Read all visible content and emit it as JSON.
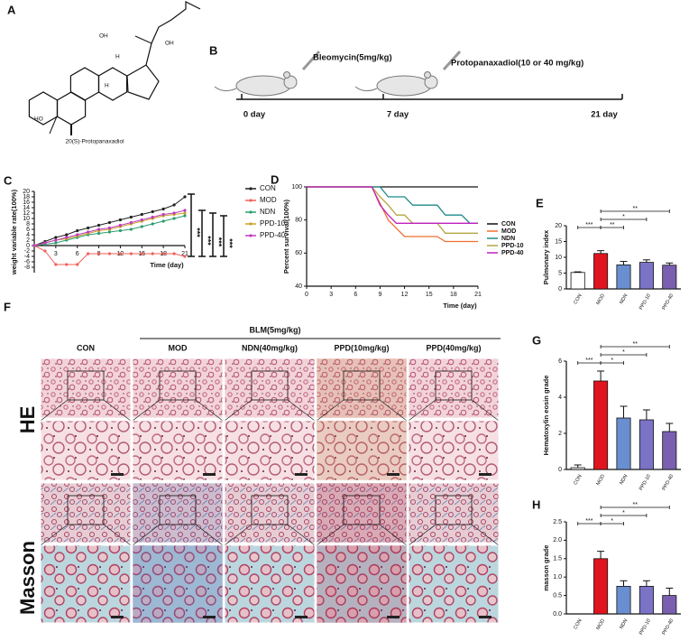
{
  "panels": {
    "A": {
      "label": "A",
      "caption": "20(S)-Protopanaxadiol",
      "atoms": [
        "OH",
        "OH",
        "H",
        "HO",
        "H"
      ]
    },
    "B": {
      "label": "B",
      "drug1": "Bleomycin(5mg/kg)",
      "drug2": "Protopanaxadiol(10 or 40 mg/kg)",
      "days": [
        "0 day",
        "7 day",
        "21 day"
      ]
    },
    "F": {
      "label": "F",
      "group": "BLM(5mg/kg)",
      "columns": [
        "CON",
        "MOD",
        "NDN(40mg/kg)",
        "PPD(10mg/kg)",
        "PPD(40mg/kg)"
      ],
      "rows": [
        "HE",
        "Masson"
      ]
    }
  },
  "chart_data": [
    {
      "label": "C",
      "type": "line",
      "y_label": "weight variable rate(100%)",
      "x_label": "Time (day)",
      "x": [
        0,
        1.5,
        3,
        4.5,
        6,
        7.5,
        9,
        10.5,
        12,
        13.5,
        15,
        16.5,
        18,
        19.5,
        21
      ],
      "xlim": [
        0,
        21
      ],
      "xticks": [
        3,
        6,
        9,
        12,
        15,
        18,
        21
      ],
      "ylim": [
        -10,
        20
      ],
      "yticks": [
        -8,
        -6,
        -4,
        -2,
        0,
        2,
        4,
        6,
        8,
        10,
        12,
        14,
        16,
        18,
        20
      ],
      "series": [
        {
          "name": "CON",
          "color": "#222222",
          "values": [
            0,
            1.5,
            3,
            4,
            5.5,
            6.5,
            7.5,
            8.5,
            9.5,
            10.5,
            11.5,
            12.5,
            13.5,
            15,
            18
          ]
        },
        {
          "name": "MOD",
          "color": "#f0605a",
          "values": [
            0,
            -2,
            -7,
            -7,
            -7,
            -3,
            -3,
            -3,
            -3,
            -3,
            -3,
            -3,
            -3,
            -3,
            -4
          ]
        },
        {
          "name": "NDN",
          "color": "#2a9d6f",
          "values": [
            0,
            0.5,
            1,
            2,
            3,
            4,
            4.5,
            5,
            5.5,
            6,
            7,
            8,
            9,
            10,
            11
          ]
        },
        {
          "name": "PPD-10",
          "color": "#c9a227",
          "values": [
            0,
            1,
            2,
            2.5,
            3.5,
            4.5,
            5.5,
            6,
            7,
            8,
            9,
            10,
            11,
            11.5,
            12
          ]
        },
        {
          "name": "PPD-40",
          "color": "#c03cc0",
          "values": [
            0,
            1,
            2,
            3,
            4,
            5,
            6,
            6.5,
            7.5,
            8.5,
            9.5,
            10.5,
            11.5,
            12,
            13
          ]
        }
      ],
      "significance": [
        {
          "label": "***",
          "color": "#222222"
        },
        {
          "label": "***",
          "color": "#9b59b6"
        },
        {
          "label": "***",
          "color": "#c8b400"
        },
        {
          "label": "***",
          "color": "#2e8b57"
        }
      ]
    },
    {
      "label": "D",
      "type": "survival",
      "y_label": "Percent survival(100%)",
      "x_label": "Time (day)",
      "x": [
        0,
        1,
        2,
        3,
        4,
        5,
        6,
        7,
        8,
        9,
        10,
        11,
        12,
        13,
        14,
        15,
        16,
        17,
        18,
        19,
        20,
        21
      ],
      "xlim": [
        0,
        21
      ],
      "xticks": [
        0,
        3,
        6,
        9,
        12,
        15,
        18,
        21
      ],
      "ylim": [
        40,
        100
      ],
      "yticks": [
        40,
        60,
        80,
        100
      ],
      "series": [
        {
          "name": "CON",
          "color": "#111111",
          "values": [
            100,
            100,
            100,
            100,
            100,
            100,
            100,
            100,
            100,
            100,
            100,
            100,
            100,
            100,
            100,
            100,
            100,
            100,
            100,
            100,
            100,
            100
          ]
        },
        {
          "name": "MOD",
          "color": "#f07030",
          "values": [
            100,
            100,
            100,
            100,
            100,
            100,
            100,
            100,
            100,
            90,
            80,
            75,
            70,
            70,
            70,
            70,
            70,
            67,
            67,
            67,
            67,
            67
          ]
        },
        {
          "name": "NDN",
          "color": "#1f8a8a",
          "values": [
            100,
            100,
            100,
            100,
            100,
            100,
            100,
            100,
            100,
            100,
            94,
            94,
            94,
            89,
            89,
            89,
            89,
            83,
            83,
            83,
            78,
            78
          ]
        },
        {
          "name": "PPD-10",
          "color": "#b5a642",
          "values": [
            100,
            100,
            100,
            100,
            100,
            100,
            100,
            100,
            100,
            94,
            89,
            83,
            83,
            78,
            78,
            78,
            78,
            72,
            72,
            72,
            72,
            72
          ]
        },
        {
          "name": "PPD-40",
          "color": "#c020c0",
          "values": [
            100,
            100,
            100,
            100,
            100,
            100,
            100,
            100,
            100,
            89,
            83,
            78,
            78,
            78,
            78,
            78,
            78,
            78,
            78,
            78,
            78,
            78
          ]
        }
      ]
    },
    {
      "label": "E",
      "type": "bar",
      "y_label": "Pulmonary index",
      "categories": [
        "CON",
        "MOD",
        "NDN",
        "PPD-10",
        "PPD-40"
      ],
      "values": [
        5.2,
        11.2,
        7.6,
        8.4,
        7.5
      ],
      "errors": [
        0.2,
        0.9,
        1.1,
        0.8,
        0.7
      ],
      "colors": [
        "#ffffff",
        "#e0141e",
        "#6a8fd0",
        "#7b73c6",
        "#7a5fb0"
      ],
      "ylim": [
        0,
        20
      ],
      "yticks": [
        0,
        5,
        10,
        15,
        20
      ],
      "significance": [
        {
          "pair": [
            "CON",
            "MOD"
          ],
          "label": "***"
        },
        {
          "pair": [
            "MOD",
            "NDN"
          ],
          "label": "**"
        },
        {
          "pair": [
            "MOD",
            "PPD-10"
          ],
          "label": "*"
        },
        {
          "pair": [
            "MOD",
            "PPD-40"
          ],
          "label": "**"
        }
      ]
    },
    {
      "label": "G",
      "type": "bar",
      "y_label": "Hematoxylin eosin grade",
      "categories": [
        "CON",
        "MOD",
        "NDN",
        "PPD-10",
        "PPD-40"
      ],
      "values": [
        0.1,
        4.9,
        2.85,
        2.75,
        2.1
      ],
      "errors": [
        0.15,
        0.55,
        0.65,
        0.55,
        0.45
      ],
      "colors": [
        "#ffffff",
        "#e0141e",
        "#6a8fd0",
        "#7b73c6",
        "#7a5fb0"
      ],
      "ylim": [
        0,
        6
      ],
      "yticks": [
        0,
        2,
        4,
        6
      ],
      "significance": [
        {
          "pair": [
            "CON",
            "MOD"
          ],
          "label": "***"
        },
        {
          "pair": [
            "MOD",
            "NDN"
          ],
          "label": "*"
        },
        {
          "pair": [
            "MOD",
            "PPD-10"
          ],
          "label": "*"
        },
        {
          "pair": [
            "MOD",
            "PPD-40"
          ],
          "label": "**"
        }
      ]
    },
    {
      "label": "H",
      "type": "bar",
      "y_label": "masson grade",
      "categories": [
        "CON",
        "MOD",
        "NDN",
        "PPD-10",
        "PPD-40"
      ],
      "values": [
        0,
        1.5,
        0.75,
        0.75,
        0.5
      ],
      "errors": [
        0,
        0.2,
        0.15,
        0.15,
        0.2
      ],
      "colors": [
        "#ffffff",
        "#e0141e",
        "#6a8fd0",
        "#7b73c6",
        "#7a5fb0"
      ],
      "ylim": [
        0,
        2.5
      ],
      "yticks": [
        {
          "value": 0,
          "label": "0.0"
        },
        0.5,
        {
          "value": 1,
          "label": "1.0"
        },
        1.5,
        {
          "value": 2,
          "label": "2.0"
        },
        2.5
      ],
      "significance": [
        {
          "pair": [
            "CON",
            "MOD"
          ],
          "label": "***"
        },
        {
          "pair": [
            "MOD",
            "NDN"
          ],
          "label": "*"
        },
        {
          "pair": [
            "MOD",
            "PPD-10"
          ],
          "label": "*"
        },
        {
          "pair": [
            "MOD",
            "PPD-40"
          ],
          "label": "**"
        }
      ]
    }
  ]
}
